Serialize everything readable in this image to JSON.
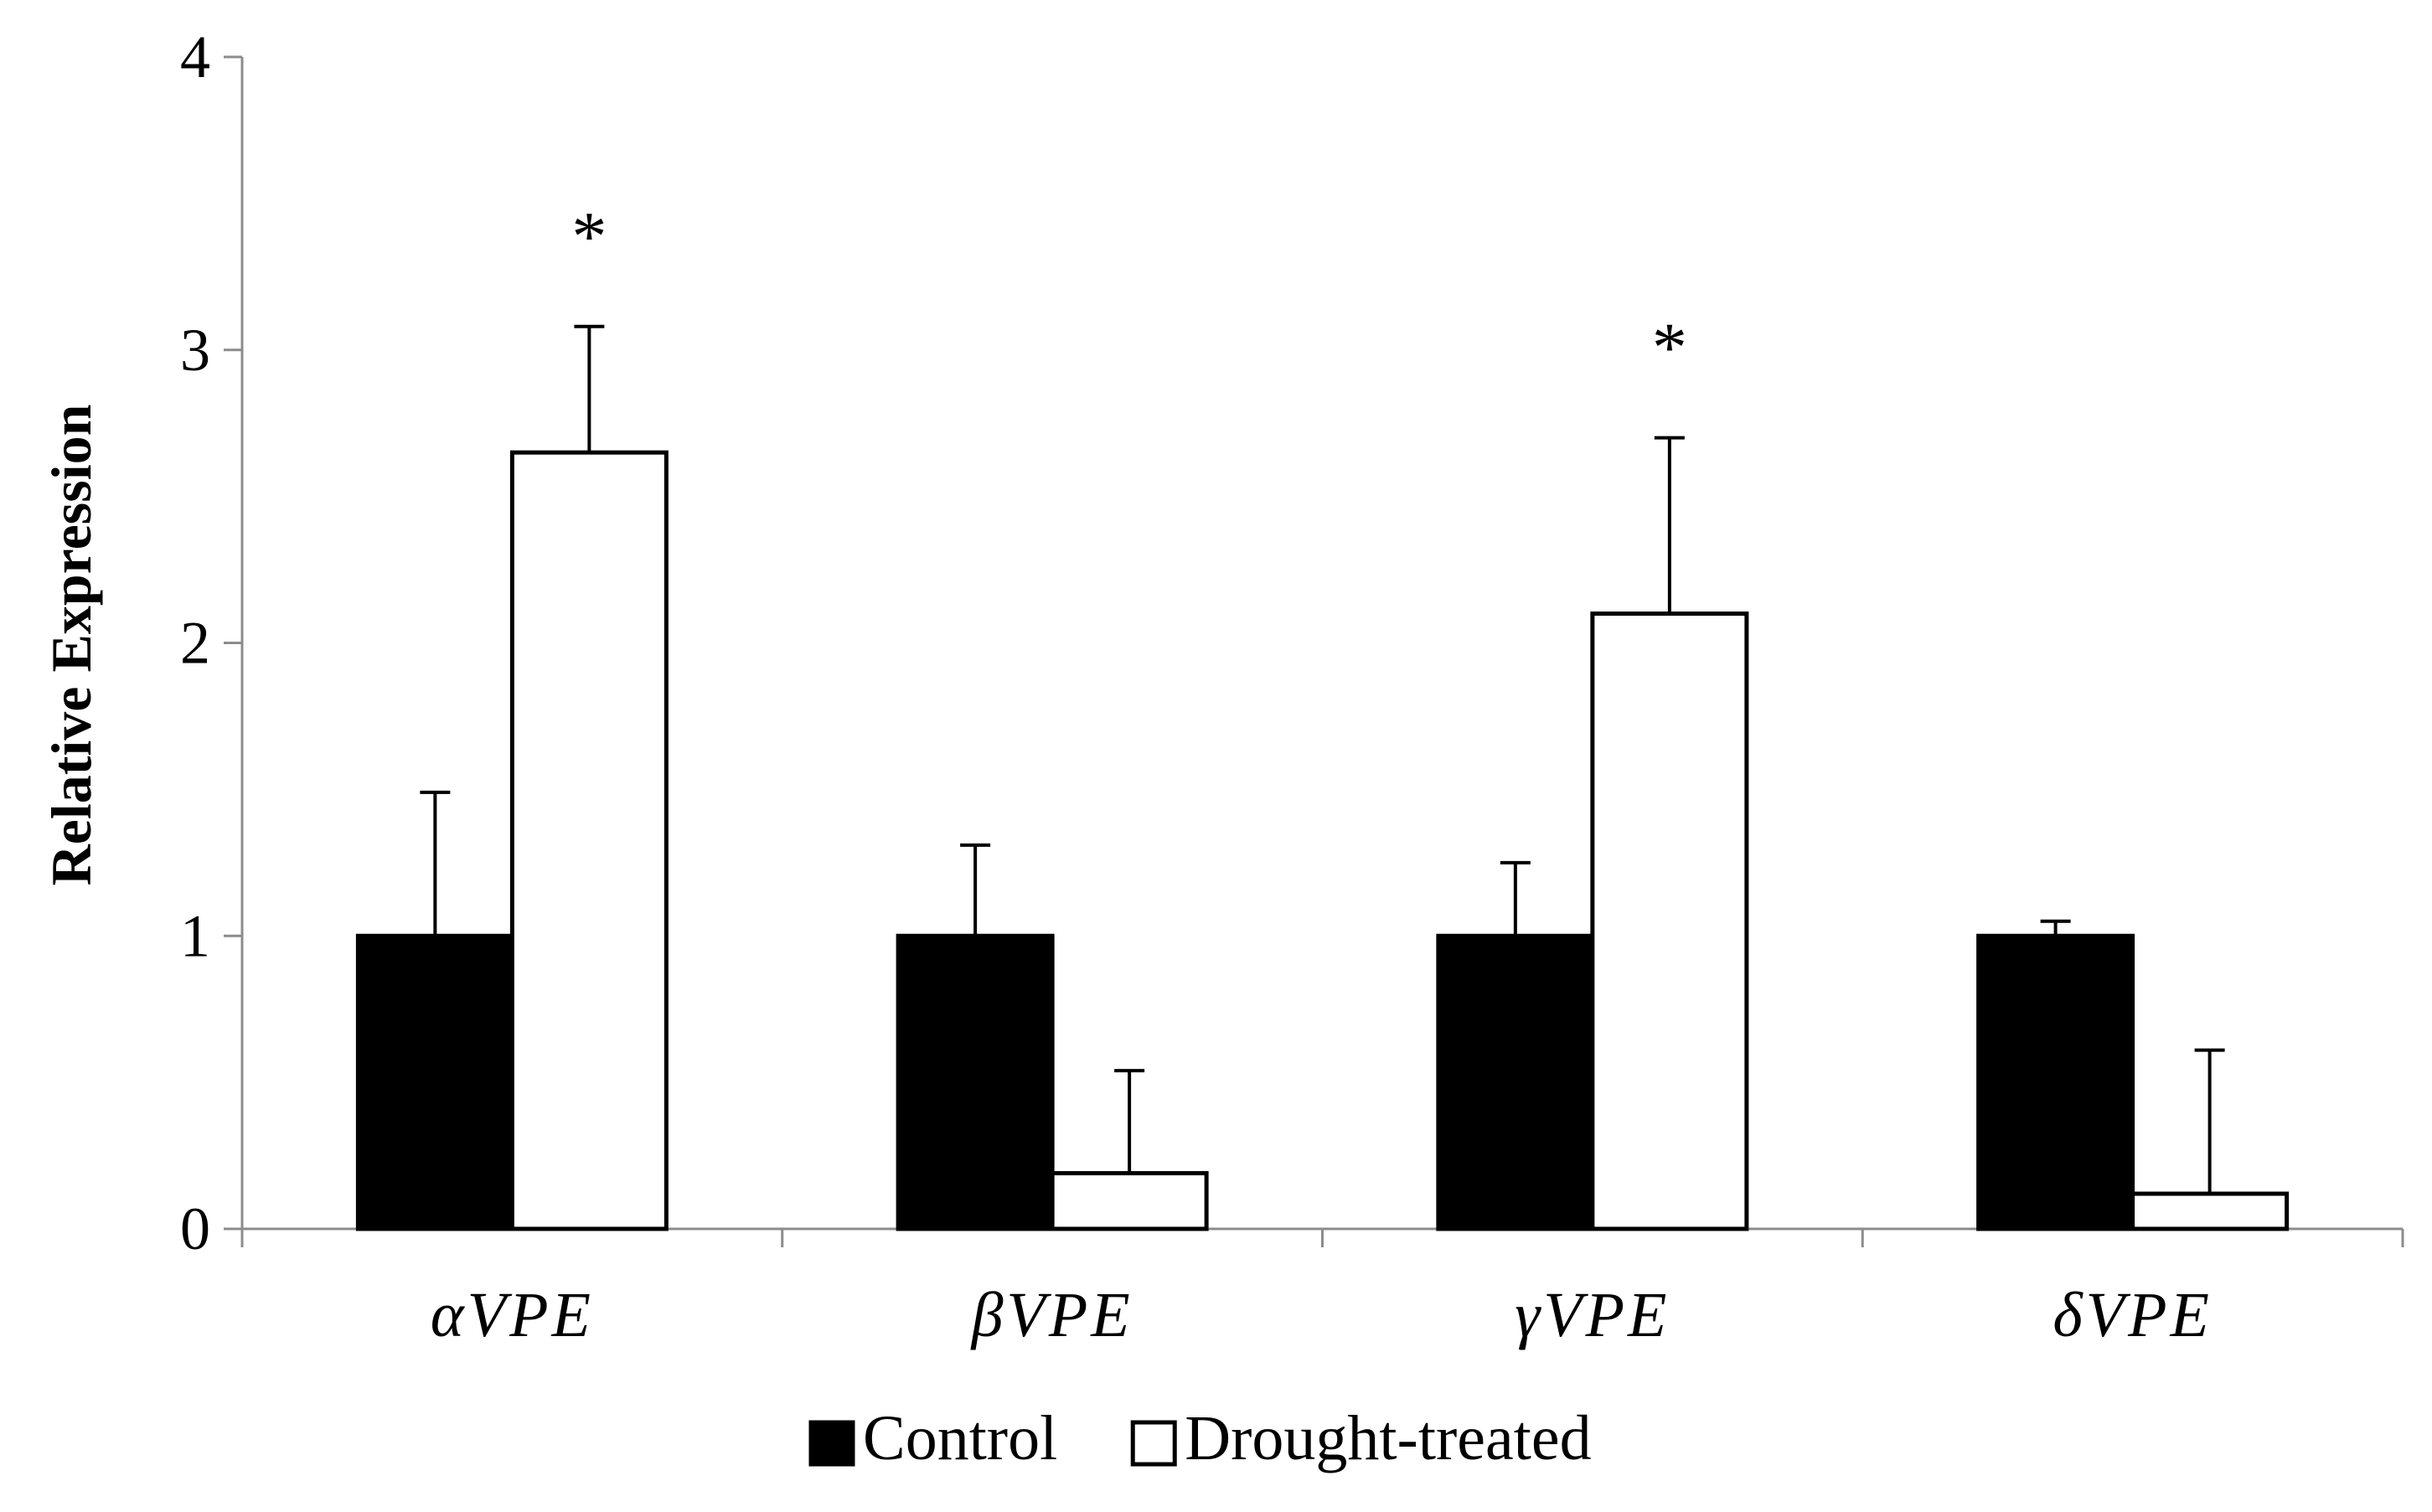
{
  "chart_data": {
    "type": "bar",
    "title": "",
    "xlabel": "",
    "ylabel": "Relative Expression",
    "ylim": [
      0,
      4
    ],
    "yticks": [
      "0",
      "1",
      "2",
      "3",
      "4"
    ],
    "grid": false,
    "legend_position": "bottom-center",
    "categories": [
      "αVPE",
      "βVPE",
      "γVPE",
      "δVPE"
    ],
    "series": [
      {
        "name": "Control",
        "fill": "#000000",
        "values": [
          1.0,
          1.0,
          1.0,
          1.0
        ],
        "errors": [
          0.49,
          0.31,
          0.25,
          0.05
        ]
      },
      {
        "name": "Drought-treated",
        "fill": "#ffffff",
        "values": [
          2.65,
          0.19,
          2.1,
          0.12
        ],
        "errors": [
          0.43,
          0.35,
          0.6,
          0.49
        ]
      }
    ],
    "annotations": [
      {
        "category": 0,
        "series": 1,
        "text": "*"
      },
      {
        "category": 2,
        "series": 1,
        "text": "*"
      }
    ]
  }
}
